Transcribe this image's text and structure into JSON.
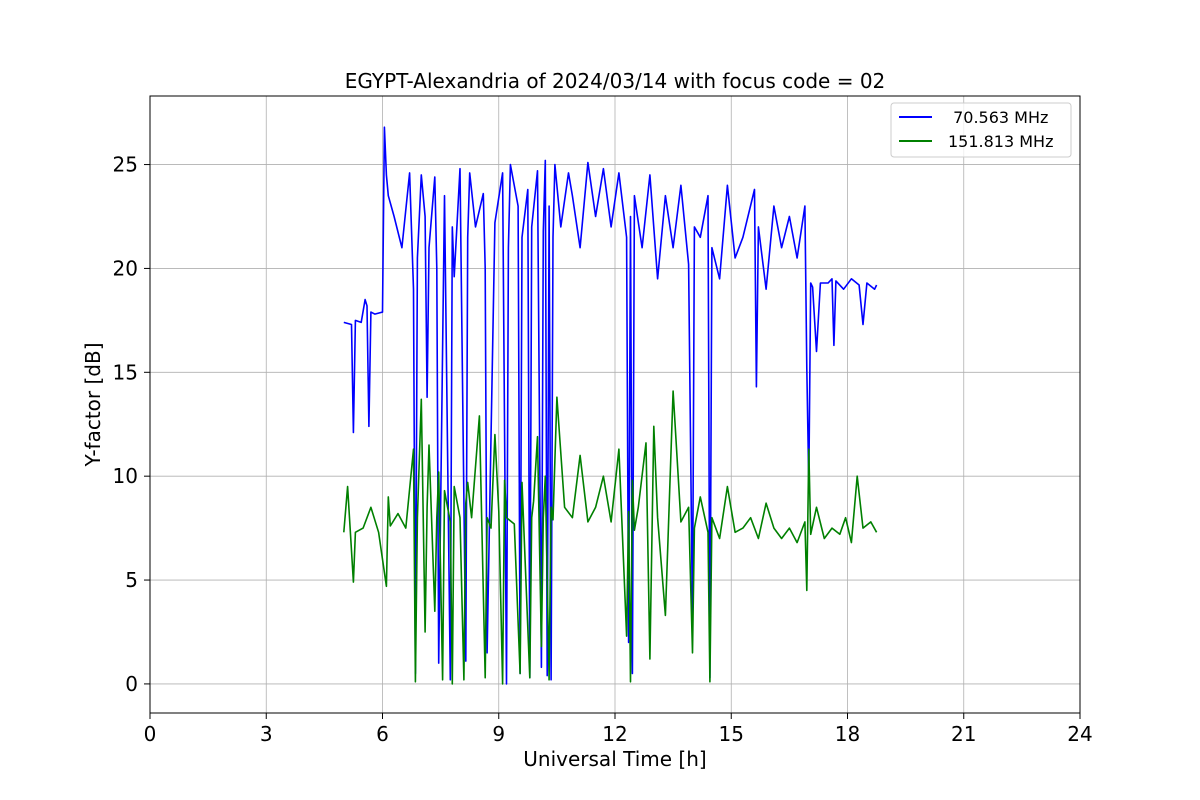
{
  "chart_data": {
    "type": "line",
    "title": "EGYPT-Alexandria of 2024/03/14 with focus code = 02",
    "xlabel": "Universal Time [h]",
    "ylabel": "Y-factor [dB]",
    "xlim": [
      0,
      24
    ],
    "ylim": [
      -1.4,
      28.3
    ],
    "xticks": [
      0,
      3,
      6,
      9,
      12,
      15,
      18,
      21,
      24
    ],
    "yticks": [
      0,
      5,
      10,
      15,
      20,
      25
    ],
    "xtick_labels": [
      "0",
      "3",
      "6",
      "9",
      "12",
      "15",
      "18",
      "21",
      "24"
    ],
    "ytick_labels": [
      "0",
      "5",
      "10",
      "15",
      "20",
      "25"
    ],
    "grid": true,
    "legend_position": "top-right",
    "series": [
      {
        "name": " 70.563 MHz",
        "color": "#0000ff",
        "x": [
          5.0,
          5.2,
          5.25,
          5.3,
          5.45,
          5.55,
          5.6,
          5.65,
          5.7,
          5.8,
          6.0,
          6.05,
          6.1,
          6.15,
          6.3,
          6.5,
          6.7,
          6.8,
          6.85,
          6.9,
          7.0,
          7.1,
          7.15,
          7.2,
          7.35,
          7.4,
          7.45,
          7.6,
          7.75,
          7.8,
          7.85,
          8.0,
          8.15,
          8.2,
          8.25,
          8.4,
          8.6,
          8.65,
          8.7,
          8.9,
          9.1,
          9.2,
          9.25,
          9.3,
          9.5,
          9.55,
          9.6,
          9.75,
          9.8,
          9.85,
          10.0,
          10.1,
          10.15,
          10.2,
          10.25,
          10.3,
          10.35,
          10.4,
          10.45,
          10.6,
          10.8,
          10.9,
          11.1,
          11.3,
          11.5,
          11.7,
          11.9,
          12.1,
          12.3,
          12.35,
          12.4,
          12.45,
          12.5,
          12.7,
          12.9,
          13.1,
          13.3,
          13.5,
          13.7,
          13.9,
          14.0,
          14.05,
          14.2,
          14.4,
          14.45,
          14.5,
          14.7,
          14.9,
          15.1,
          15.3,
          15.6,
          15.65,
          15.7,
          15.9,
          16.1,
          16.3,
          16.5,
          16.7,
          16.9,
          16.95,
          17.0,
          17.05,
          17.1,
          17.2,
          17.3,
          17.5,
          17.6,
          17.65,
          17.7,
          17.9,
          18.1,
          18.3,
          18.4,
          18.5,
          18.7,
          18.75
        ],
        "y": [
          17.4,
          17.3,
          12.1,
          17.5,
          17.4,
          18.5,
          18.2,
          12.4,
          17.9,
          17.8,
          17.9,
          26.8,
          24.5,
          23.5,
          22.5,
          21.0,
          24.6,
          19.0,
          0.5,
          20.5,
          24.5,
          22.5,
          13.8,
          21.0,
          24.4,
          20.0,
          1.0,
          23.5,
          0.2,
          22.0,
          19.6,
          24.8,
          1.1,
          21.5,
          24.6,
          22.0,
          23.6,
          20.0,
          1.5,
          22.2,
          24.6,
          0.0,
          21.0,
          25.0,
          23.0,
          0.5,
          21.5,
          23.8,
          0.3,
          22.0,
          24.7,
          0.8,
          21.8,
          25.2,
          0.4,
          23.0,
          0.2,
          21.5,
          25.0,
          22.0,
          24.6,
          23.5,
          21.0,
          25.1,
          22.5,
          24.8,
          22.0,
          24.6,
          21.5,
          2.0,
          22.5,
          0.5,
          23.5,
          21.0,
          24.5,
          19.5,
          23.5,
          21.0,
          24.0,
          20.2,
          3.0,
          22.0,
          21.5,
          23.5,
          0.3,
          21.0,
          19.5,
          24.0,
          20.5,
          21.5,
          23.8,
          14.3,
          22.0,
          19.0,
          23.0,
          21.0,
          22.5,
          20.5,
          23.0,
          15.2,
          9.6,
          19.3,
          19.1,
          16.0,
          19.3,
          19.3,
          19.5,
          16.3,
          19.4,
          19.0,
          19.5,
          19.2,
          17.3,
          19.3,
          19.0,
          19.2
        ]
      },
      {
        "name": "151.813 MHz",
        "color": "#008000",
        "x": [
          5.0,
          5.1,
          5.25,
          5.3,
          5.5,
          5.7,
          5.9,
          6.1,
          6.15,
          6.2,
          6.4,
          6.6,
          6.8,
          6.85,
          6.9,
          7.0,
          7.1,
          7.15,
          7.2,
          7.35,
          7.4,
          7.45,
          7.55,
          7.6,
          7.75,
          7.8,
          7.85,
          8.0,
          8.1,
          8.15,
          8.2,
          8.3,
          8.5,
          8.65,
          8.7,
          8.8,
          8.9,
          9.0,
          9.1,
          9.15,
          9.2,
          9.4,
          9.55,
          9.6,
          9.8,
          9.85,
          9.9,
          10.0,
          10.1,
          10.15,
          10.2,
          10.3,
          10.35,
          10.4,
          10.5,
          10.7,
          10.9,
          11.1,
          11.3,
          11.5,
          11.7,
          11.9,
          12.1,
          12.3,
          12.35,
          12.4,
          12.45,
          12.5,
          12.6,
          12.8,
          12.9,
          13.0,
          13.1,
          13.3,
          13.5,
          13.7,
          13.9,
          14.0,
          14.05,
          14.2,
          14.4,
          14.45,
          14.5,
          14.7,
          14.9,
          15.1,
          15.3,
          15.5,
          15.7,
          15.9,
          16.1,
          16.3,
          16.5,
          16.7,
          16.9,
          16.95,
          17.0,
          17.05,
          17.2,
          17.4,
          17.6,
          17.8,
          17.95,
          18.1,
          18.25,
          18.4,
          18.6,
          18.75
        ],
        "y": [
          7.3,
          9.5,
          4.9,
          7.3,
          7.5,
          8.5,
          7.3,
          4.7,
          9.0,
          7.6,
          8.2,
          7.5,
          11.3,
          0.1,
          8.0,
          13.7,
          2.5,
          8.5,
          11.5,
          3.5,
          8.0,
          10.2,
          0.2,
          9.3,
          7.8,
          0.0,
          9.5,
          8.0,
          0.2,
          8.7,
          9.7,
          8.0,
          12.9,
          0.3,
          8.0,
          7.5,
          12.0,
          8.3,
          0.0,
          9.8,
          8.0,
          7.7,
          0.5,
          9.7,
          0.3,
          8.0,
          8.8,
          11.9,
          1.8,
          8.0,
          10.0,
          0.2,
          8.5,
          7.9,
          13.8,
          8.5,
          8.0,
          11.0,
          7.8,
          8.5,
          10.0,
          7.8,
          11.3,
          2.3,
          8.3,
          0.1,
          9.8,
          7.4,
          8.5,
          11.6,
          1.2,
          12.4,
          8.0,
          3.3,
          14.1,
          7.8,
          8.5,
          1.5,
          7.5,
          9.0,
          7.3,
          0.1,
          8.0,
          7.0,
          9.5,
          7.3,
          7.5,
          8.0,
          7.0,
          8.7,
          7.5,
          7.0,
          7.5,
          6.8,
          7.8,
          4.5,
          11.3,
          7.2,
          8.5,
          7.0,
          7.5,
          7.2,
          8.0,
          6.8,
          10.0,
          7.5,
          7.8,
          7.3
        ]
      }
    ]
  }
}
